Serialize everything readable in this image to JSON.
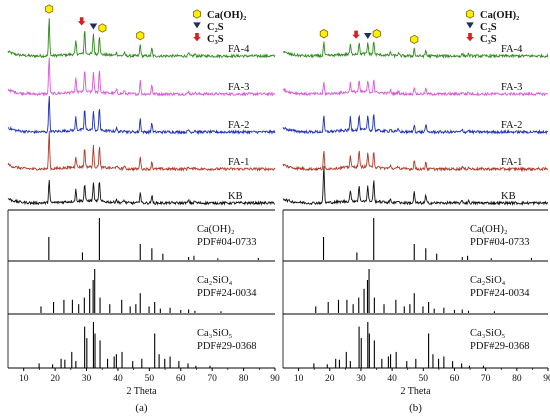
{
  "chart_data": [
    {
      "type": "line",
      "panel_label": "(a)",
      "xlabel": "2 Theta",
      "xlim": [
        5,
        90
      ],
      "x_ticks": [
        10,
        20,
        30,
        40,
        50,
        60,
        70,
        80,
        90
      ],
      "legend": {
        "placement": "top-right",
        "entries": [
          {
            "label": "Ca(OH)₂",
            "marker": "yellow-hexagon",
            "color": "#ffee00"
          },
          {
            "label": "C₂S",
            "marker": "navy-triangle-down",
            "color": "#1f2f5a"
          },
          {
            "label": "C₃S",
            "marker": "red-arrow-down",
            "color": "#d62020"
          }
        ]
      },
      "series": [
        {
          "name": "FA-4",
          "color": "#2e8b1e",
          "peaks": [
            [
              18.1,
              1.0
            ],
            [
              26.6,
              0.35
            ],
            [
              29.4,
              0.65
            ],
            [
              32.2,
              0.55
            ],
            [
              34.1,
              0.5
            ],
            [
              47.1,
              0.3
            ],
            [
              50.8,
              0.2
            ]
          ],
          "annotations": [
            {
              "x": 18.1,
              "marker": "hexagon"
            },
            {
              "x": 29.4,
              "marker": "arrow"
            },
            {
              "x": 32.2,
              "marker": "triangle"
            },
            {
              "x": 34.1,
              "marker": "hexagon"
            },
            {
              "x": 47.1,
              "marker": "hexagon"
            }
          ]
        },
        {
          "name": "FA-3",
          "color": "#d85ad8",
          "peaks": [
            [
              18.1,
              1.0
            ],
            [
              26.6,
              0.35
            ],
            [
              29.4,
              0.6
            ],
            [
              32.2,
              0.55
            ],
            [
              34.1,
              0.6
            ],
            [
              47.1,
              0.35
            ],
            [
              50.8,
              0.25
            ]
          ]
        },
        {
          "name": "FA-2",
          "color": "#1f2fb8",
          "peaks": [
            [
              18.1,
              1.0
            ],
            [
              26.6,
              0.35
            ],
            [
              29.4,
              0.55
            ],
            [
              32.2,
              0.5
            ],
            [
              34.1,
              0.6
            ],
            [
              47.1,
              0.35
            ],
            [
              50.8,
              0.25
            ]
          ]
        },
        {
          "name": "FA-1",
          "color": "#b03a2a",
          "peaks": [
            [
              18.1,
              1.0
            ],
            [
              26.6,
              0.3
            ],
            [
              29.4,
              0.5
            ],
            [
              32.2,
              0.55
            ],
            [
              34.1,
              0.55
            ],
            [
              47.1,
              0.35
            ],
            [
              50.8,
              0.2
            ]
          ]
        },
        {
          "name": "KB",
          "color": "#111111",
          "peaks": [
            [
              18.1,
              0.6
            ],
            [
              26.6,
              0.3
            ],
            [
              29.4,
              0.45
            ],
            [
              32.2,
              0.5
            ],
            [
              34.1,
              0.55
            ],
            [
              47.1,
              0.3
            ],
            [
              50.8,
              0.2
            ]
          ]
        }
      ],
      "reference_patterns": [
        {
          "name": "Ca(OH)₂",
          "card": "PDF#04-0733",
          "lines": [
            [
              18.0,
              0.55
            ],
            [
              28.7,
              0.18
            ],
            [
              34.1,
              1.0
            ],
            [
              47.1,
              0.38
            ],
            [
              50.8,
              0.28
            ],
            [
              54.3,
              0.15
            ],
            [
              62.5,
              0.07
            ],
            [
              64.2,
              0.1
            ],
            [
              71.8,
              0.04
            ],
            [
              84.7,
              0.05
            ]
          ]
        },
        {
          "name": "Ca₂SiO₄",
          "card": "PDF#24-0034",
          "lines": [
            [
              15.5,
              0.15
            ],
            [
              19.5,
              0.25
            ],
            [
              22.8,
              0.3
            ],
            [
              25.5,
              0.3
            ],
            [
              27.5,
              0.2
            ],
            [
              29.3,
              0.35
            ],
            [
              31.0,
              0.55
            ],
            [
              32.1,
              0.75
            ],
            [
              32.6,
              1.0
            ],
            [
              34.3,
              0.35
            ],
            [
              37.4,
              0.2
            ],
            [
              41.2,
              0.3
            ],
            [
              43.9,
              0.15
            ],
            [
              45.7,
              0.2
            ],
            [
              47.1,
              0.45
            ],
            [
              49.9,
              0.15
            ],
            [
              51.7,
              0.25
            ],
            [
              53.5,
              0.1
            ],
            [
              56.6,
              0.12
            ],
            [
              60.0,
              0.07
            ],
            [
              62.5,
              0.08
            ],
            [
              64.5,
              0.05
            ],
            [
              72.8,
              0.04
            ]
          ]
        },
        {
          "name": "Ca₃SiO₅",
          "card": "PDF#29-0368",
          "lines": [
            [
              14.9,
              0.1
            ],
            [
              19.2,
              0.08
            ],
            [
              21.9,
              0.2
            ],
            [
              23.1,
              0.18
            ],
            [
              25.3,
              0.35
            ],
            [
              26.6,
              0.15
            ],
            [
              29.4,
              0.9
            ],
            [
              30.1,
              0.65
            ],
            [
              32.2,
              1.0
            ],
            [
              32.7,
              0.75
            ],
            [
              34.3,
              0.6
            ],
            [
              36.7,
              0.2
            ],
            [
              38.8,
              0.25
            ],
            [
              39.5,
              0.3
            ],
            [
              41.3,
              0.35
            ],
            [
              44.7,
              0.15
            ],
            [
              47.6,
              0.2
            ],
            [
              51.7,
              0.75
            ],
            [
              53.1,
              0.3
            ],
            [
              54.9,
              0.2
            ],
            [
              56.6,
              0.25
            ],
            [
              59.4,
              0.15
            ],
            [
              62.3,
              0.1
            ],
            [
              64.8,
              0.05
            ],
            [
              69.3,
              0.05
            ]
          ]
        }
      ]
    },
    {
      "type": "line",
      "panel_label": "(b)",
      "xlabel": "2 Theta",
      "xlim": [
        5,
        90
      ],
      "x_ticks": [
        10,
        20,
        30,
        40,
        50,
        60,
        70,
        80,
        90
      ],
      "legend": {
        "placement": "top-right",
        "entries": [
          {
            "label": "Ca(OH)₂",
            "marker": "yellow-hexagon",
            "color": "#ffee00"
          },
          {
            "label": "C₂S",
            "marker": "navy-triangle-down",
            "color": "#1f2f5a"
          },
          {
            "label": "C₃S",
            "marker": "red-arrow-down",
            "color": "#d62020"
          }
        ]
      },
      "series": [
        {
          "name": "FA-4",
          "color": "#2e8b1e",
          "peaks": [
            [
              18.1,
              0.35
            ],
            [
              26.6,
              0.25
            ],
            [
              29.4,
              0.3
            ],
            [
              32.2,
              0.3
            ],
            [
              34.1,
              0.35
            ],
            [
              47.1,
              0.2
            ],
            [
              50.8,
              0.15
            ]
          ],
          "annotations": [
            {
              "x": 18.1,
              "marker": "hexagon"
            },
            {
              "x": 29.4,
              "marker": "arrow"
            },
            {
              "x": 32.2,
              "marker": "triangle"
            },
            {
              "x": 34.1,
              "marker": "hexagon"
            },
            {
              "x": 47.1,
              "marker": "hexagon"
            }
          ]
        },
        {
          "name": "FA-3",
          "color": "#d85ad8",
          "peaks": [
            [
              18.1,
              0.3
            ],
            [
              26.6,
              0.25
            ],
            [
              29.4,
              0.3
            ],
            [
              32.2,
              0.3
            ],
            [
              34.1,
              0.35
            ],
            [
              47.1,
              0.2
            ],
            [
              50.8,
              0.15
            ]
          ]
        },
        {
          "name": "FA-2",
          "color": "#1f2fb8",
          "peaks": [
            [
              18.1,
              0.4
            ],
            [
              26.6,
              0.35
            ],
            [
              29.4,
              0.4
            ],
            [
              32.2,
              0.4
            ],
            [
              34.1,
              0.45
            ],
            [
              47.1,
              0.2
            ],
            [
              50.8,
              0.2
            ]
          ]
        },
        {
          "name": "FA-1",
          "color": "#b03a2a",
          "peaks": [
            [
              18.1,
              0.45
            ],
            [
              26.6,
              0.3
            ],
            [
              29.4,
              0.45
            ],
            [
              32.2,
              0.4
            ],
            [
              34.1,
              0.45
            ],
            [
              47.1,
              0.25
            ],
            [
              50.8,
              0.2
            ]
          ]
        },
        {
          "name": "KB",
          "color": "#111111",
          "peaks": [
            [
              18.1,
              1.0
            ],
            [
              26.6,
              0.3
            ],
            [
              29.4,
              0.4
            ],
            [
              32.2,
              0.4
            ],
            [
              34.1,
              0.55
            ],
            [
              47.1,
              0.3
            ],
            [
              50.8,
              0.2
            ]
          ]
        }
      ],
      "reference_patterns": [
        {
          "name": "Ca(OH)₂",
          "card": "PDF#04-0733",
          "lines": [
            [
              18.0,
              0.55
            ],
            [
              28.7,
              0.18
            ],
            [
              34.1,
              1.0
            ],
            [
              47.1,
              0.38
            ],
            [
              50.8,
              0.28
            ],
            [
              54.3,
              0.15
            ],
            [
              62.5,
              0.07
            ],
            [
              64.2,
              0.1
            ],
            [
              71.8,
              0.04
            ],
            [
              84.7,
              0.05
            ]
          ]
        },
        {
          "name": "Ca₂SiO₄",
          "card": "PDF#24-0034",
          "lines": [
            [
              15.5,
              0.15
            ],
            [
              19.5,
              0.25
            ],
            [
              22.8,
              0.3
            ],
            [
              25.5,
              0.3
            ],
            [
              27.5,
              0.2
            ],
            [
              29.3,
              0.35
            ],
            [
              31.0,
              0.55
            ],
            [
              32.1,
              0.75
            ],
            [
              32.6,
              1.0
            ],
            [
              34.3,
              0.35
            ],
            [
              37.4,
              0.2
            ],
            [
              41.2,
              0.3
            ],
            [
              43.9,
              0.15
            ],
            [
              45.7,
              0.2
            ],
            [
              47.1,
              0.45
            ],
            [
              49.9,
              0.15
            ],
            [
              51.7,
              0.25
            ],
            [
              53.5,
              0.1
            ],
            [
              56.6,
              0.12
            ],
            [
              60.0,
              0.07
            ],
            [
              62.5,
              0.08
            ],
            [
              64.5,
              0.05
            ],
            [
              72.8,
              0.04
            ]
          ]
        },
        {
          "name": "Ca₃SiO₅",
          "card": "PDF#29-0368",
          "lines": [
            [
              14.9,
              0.1
            ],
            [
              19.2,
              0.08
            ],
            [
              21.9,
              0.2
            ],
            [
              23.1,
              0.18
            ],
            [
              25.3,
              0.35
            ],
            [
              26.6,
              0.15
            ],
            [
              29.4,
              0.9
            ],
            [
              30.1,
              0.65
            ],
            [
              32.2,
              1.0
            ],
            [
              32.7,
              0.75
            ],
            [
              34.3,
              0.6
            ],
            [
              36.7,
              0.2
            ],
            [
              38.8,
              0.25
            ],
            [
              39.5,
              0.3
            ],
            [
              41.3,
              0.35
            ],
            [
              44.7,
              0.15
            ],
            [
              47.6,
              0.2
            ],
            [
              51.7,
              0.75
            ],
            [
              53.1,
              0.3
            ],
            [
              54.9,
              0.2
            ],
            [
              56.6,
              0.25
            ],
            [
              59.4,
              0.15
            ],
            [
              62.3,
              0.1
            ],
            [
              64.8,
              0.05
            ],
            [
              69.3,
              0.05
            ]
          ]
        }
      ]
    }
  ]
}
